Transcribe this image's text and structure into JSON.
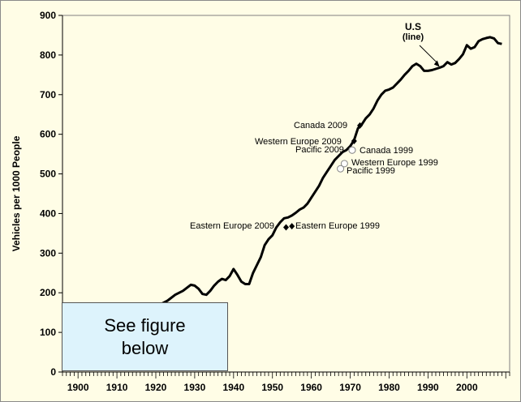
{
  "chart_data": {
    "type": "line",
    "ylabel": "Vehicles per 1000 People",
    "xlabel": "",
    "ylim": [
      0,
      900
    ],
    "xlim": [
      1896,
      2011
    ],
    "yticks": [
      0,
      100,
      200,
      300,
      400,
      500,
      600,
      700,
      800,
      900
    ],
    "xticks": [
      1900,
      1910,
      1920,
      1930,
      1940,
      1950,
      1960,
      1970,
      1980,
      1990,
      2000
    ],
    "grid": false,
    "series": [
      {
        "name": "U.S",
        "x": [
          1921,
          1923,
          1925,
          1927,
          1929,
          1930,
          1931,
          1932,
          1933,
          1934,
          1935,
          1936,
          1937,
          1938,
          1939,
          1940,
          1941,
          1942,
          1943,
          1944,
          1945,
          1946,
          1947,
          1948,
          1949,
          1950,
          1951,
          1952,
          1953,
          1954,
          1955,
          1956,
          1957,
          1958,
          1959,
          1960,
          1961,
          1962,
          1963,
          1964,
          1965,
          1966,
          1967,
          1968,
          1969,
          1970,
          1971,
          1972,
          1973,
          1974,
          1975,
          1976,
          1977,
          1978,
          1979,
          1980,
          1981,
          1982,
          1983,
          1984,
          1985,
          1986,
          1987,
          1988,
          1989,
          1990,
          1991,
          1992,
          1993,
          1994,
          1995,
          1996,
          1997,
          1998,
          1999,
          2000,
          2001,
          2002,
          2003,
          2004,
          2005,
          2006,
          2007,
          2008,
          2009
        ],
        "y": [
          170,
          180,
          195,
          205,
          220,
          218,
          210,
          197,
          195,
          205,
          218,
          228,
          235,
          232,
          242,
          260,
          245,
          228,
          222,
          222,
          250,
          270,
          290,
          320,
          335,
          345,
          365,
          378,
          388,
          390,
          395,
          402,
          410,
          415,
          425,
          440,
          455,
          470,
          490,
          505,
          520,
          535,
          545,
          555,
          560,
          570,
          585,
          615,
          625,
          640,
          650,
          665,
          685,
          700,
          710,
          713,
          718,
          728,
          738,
          750,
          760,
          772,
          778,
          772,
          760,
          760,
          762,
          765,
          768,
          772,
          782,
          776,
          780,
          790,
          802,
          825,
          816,
          820,
          835,
          840,
          843,
          845,
          842,
          830,
          828
        ]
      }
    ],
    "points": [
      {
        "label": "Canada 2009",
        "x": 1972.5,
        "y": 622,
        "style": "filled-diamond"
      },
      {
        "label": "Western Europe 2009",
        "x": 1971,
        "y": 583,
        "style": "filled-diamond"
      },
      {
        "label": "Pacific 2009",
        "x": 1970.5,
        "y": 560,
        "style": "open-circle"
      },
      {
        "label": "Canada 1999",
        "x": 1970.5,
        "y": 560,
        "style": "open-circle"
      },
      {
        "label": "Western Europe 1999",
        "x": 1968.5,
        "y": 526,
        "style": "open-circle"
      },
      {
        "label": "Pacific 1999",
        "x": 1967.5,
        "y": 513,
        "style": "open-circle"
      },
      {
        "label": "Eastern Europe 2009",
        "x": 1953.5,
        "y": 365,
        "style": "filled-diamond"
      },
      {
        "label": "Eastern Europe 1999",
        "x": 1955,
        "y": 368,
        "style": "filled-diamond"
      }
    ],
    "series_annotation": {
      "title": "U.S",
      "subtitle": "(line)",
      "points_to": [
        1993,
        770
      ]
    }
  },
  "note_box": {
    "text": "See figure\nbelow"
  },
  "colors": {
    "background": "#fffde6",
    "line": "#000000",
    "note_fill": "#ddf3fc"
  }
}
